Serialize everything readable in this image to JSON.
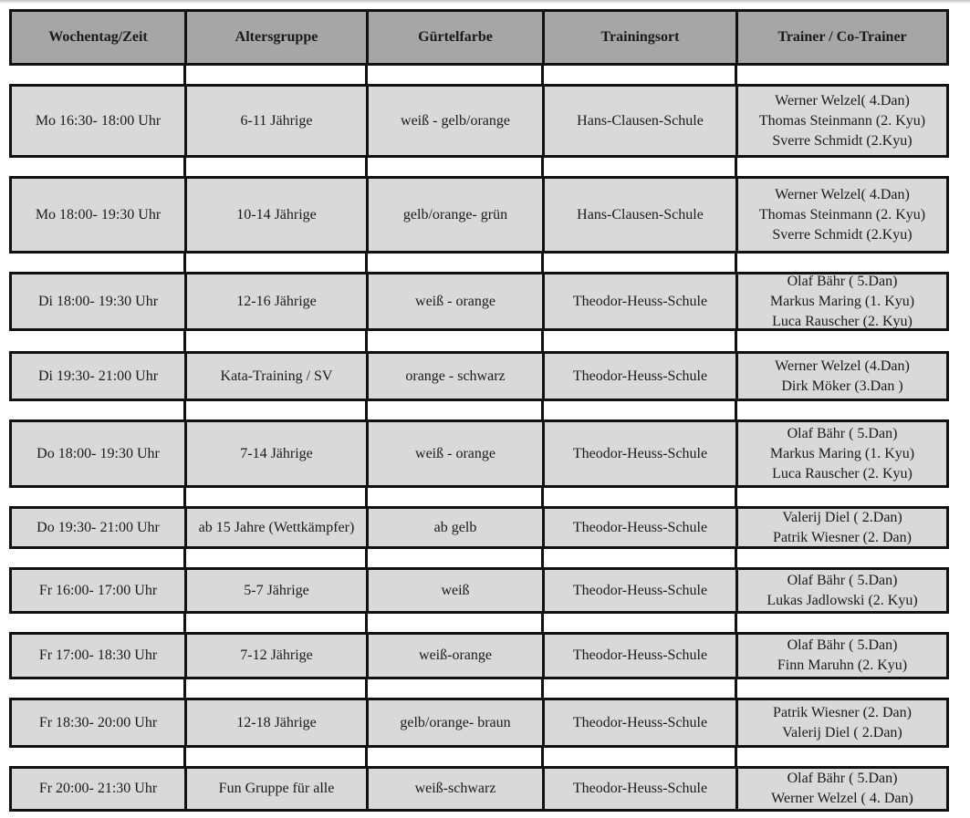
{
  "header": [
    "Wochentag/Zeit",
    "Altersgruppe",
    "Gürtelfarbe",
    "Trainingsort",
    "Trainer / Co-Trainer"
  ],
  "rows": [
    {
      "time": "Mo 16:30- 18:00 Uhr",
      "age": "6-11 Jährige",
      "belt": "weiß - gelb/orange",
      "place": "Hans-Clausen-Schule",
      "trainers": [
        "Werner Welzel( 4.Dan)",
        "Thomas Steinmann (2. Kyu)",
        "Sverre Schmidt (2.Kyu)"
      ]
    },
    {
      "time": "Mo 18:00- 19:30 Uhr",
      "age": "10-14 Jährige",
      "belt": "gelb/orange- grün",
      "place": "Hans-Clausen-Schule",
      "trainers": [
        "Werner Welzel( 4.Dan)",
        "Thomas Steinmann (2. Kyu)",
        "Sverre Schmidt (2.Kyu)"
      ]
    },
    {
      "time": "Di 18:00- 19:30 Uhr",
      "age": "12-16 Jährige",
      "belt": "weiß - orange",
      "place": "Theodor-Heuss-Schule",
      "trainers": [
        "Olaf Bähr ( 5.Dan)",
        "Markus Maring (1. Kyu)",
        "Luca Rauscher (2. Kyu)"
      ]
    },
    {
      "time": "Di 19:30- 21:00 Uhr",
      "age": "Kata-Training / SV",
      "belt": "orange - schwarz",
      "place": "Theodor-Heuss-Schule",
      "trainers": [
        "Werner Welzel (4.Dan)",
        "Dirk Möker (3.Dan )"
      ]
    },
    {
      "time": "Do 18:00- 19:30 Uhr",
      "age": "7-14 Jährige",
      "belt": "weiß - orange",
      "place": "Theodor-Heuss-Schule",
      "trainers": [
        "Olaf Bähr ( 5.Dan)",
        "Markus Maring (1. Kyu)",
        "Luca Rauscher (2. Kyu)"
      ]
    },
    {
      "time": "Do 19:30- 21:00 Uhr",
      "age": "ab 15 Jahre (Wettkämpfer)",
      "belt": "ab gelb",
      "place": "Theodor-Heuss-Schule",
      "trainers": [
        "Valerij Diel ( 2.Dan)",
        "Patrik Wiesner (2. Dan)"
      ]
    },
    {
      "time": "Fr 16:00- 17:00 Uhr",
      "age": "5-7 Jährige",
      "belt": "weiß",
      "place": "Theodor-Heuss-Schule",
      "trainers": [
        "Olaf Bähr ( 5.Dan)",
        "Lukas Jadlowski (2. Kyu)"
      ]
    },
    {
      "time": "Fr 17:00- 18:30 Uhr",
      "age": "7-12 Jährige",
      "belt": "weiß-orange",
      "place": "Theodor-Heuss-Schule",
      "trainers": [
        "Olaf Bähr ( 5.Dan)",
        "Finn Maruhn (2. Kyu)"
      ]
    },
    {
      "time": "Fr 18:30- 20:00 Uhr",
      "age": "12-18 Jährige",
      "belt": "gelb/orange- braun",
      "place": "Theodor-Heuss-Schule",
      "trainers": [
        "Patrik Wiesner (2. Dan)",
        "Valerij Diel ( 2.Dan)"
      ]
    },
    {
      "time": "Fr 20:00- 21:30 Uhr",
      "age": "Fun Gruppe für alle",
      "belt": "weiß-schwarz",
      "place": "Theodor-Heuss-Schule",
      "trainers": [
        "Olaf Bähr ( 5.Dan)",
        "Werner Welzel ( 4. Dan)"
      ]
    }
  ],
  "colors": {
    "header_bg": "#a6a6a6",
    "row_bg": "#d9d9d9",
    "border": "#111111"
  }
}
